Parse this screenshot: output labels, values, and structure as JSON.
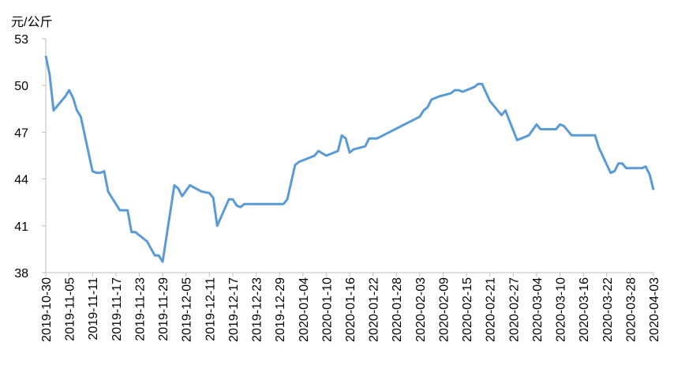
{
  "chart_data": {
    "type": "line",
    "y_label": "元/公斤",
    "xlim": [
      "2019-10-30",
      "2020-04-03"
    ],
    "xticks": [
      "2019-10-30",
      "2019-11-05",
      "2019-11-11",
      "2019-11-17",
      "2019-11-23",
      "2019-11-29",
      "2019-12-05",
      "2019-12-11",
      "2019-12-17",
      "2019-12-23",
      "2019-12-29",
      "2020-01-04",
      "2020-01-10",
      "2020-01-16",
      "2020-01-22",
      "2020-01-28",
      "2020-02-03",
      "2020-02-09",
      "2020-02-15",
      "2020-02-21",
      "2020-02-27",
      "2020-03-04",
      "2020-03-10",
      "2020-03-16",
      "2020-03-22",
      "2020-03-28",
      "2020-04-03"
    ],
    "ylim": [
      38,
      53
    ],
    "yticks": [
      38,
      41,
      44,
      47,
      50,
      53
    ],
    "x": [
      "2019-10-30",
      "2019-10-31",
      "2019-11-01",
      "2019-11-04",
      "2019-11-05",
      "2019-11-06",
      "2019-11-07",
      "2019-11-08",
      "2019-11-11",
      "2019-11-12",
      "2019-11-13",
      "2019-11-14",
      "2019-11-15",
      "2019-11-16",
      "2019-11-18",
      "2019-11-20",
      "2019-11-21",
      "2019-11-22",
      "2019-11-25",
      "2019-11-27",
      "2019-11-28",
      "2019-11-29",
      "2019-12-02",
      "2019-12-03",
      "2019-12-04",
      "2019-12-06",
      "2019-12-09",
      "2019-12-11",
      "2019-12-12",
      "2019-12-13",
      "2019-12-16",
      "2019-12-17",
      "2019-12-18",
      "2019-12-19",
      "2019-12-20",
      "2019-12-30",
      "2019-12-31",
      "2020-01-02",
      "2020-01-03",
      "2020-01-06",
      "2020-01-07",
      "2020-01-08",
      "2020-01-10",
      "2020-01-13",
      "2020-01-14",
      "2020-01-15",
      "2020-01-16",
      "2020-01-17",
      "2020-01-20",
      "2020-01-21",
      "2020-01-23",
      "2020-02-03",
      "2020-02-04",
      "2020-02-05",
      "2020-02-06",
      "2020-02-08",
      "2020-02-11",
      "2020-02-12",
      "2020-02-13",
      "2020-02-14",
      "2020-02-17",
      "2020-02-18",
      "2020-02-19",
      "2020-02-21",
      "2020-02-24",
      "2020-02-25",
      "2020-02-28",
      "2020-03-02",
      "2020-03-04",
      "2020-03-05",
      "2020-03-09",
      "2020-03-10",
      "2020-03-11",
      "2020-03-13",
      "2020-03-16",
      "2020-03-18",
      "2020-03-19",
      "2020-03-20",
      "2020-03-23",
      "2020-03-24",
      "2020-03-25",
      "2020-03-26",
      "2020-03-27",
      "2020-03-31",
      "2020-04-01",
      "2020-04-02",
      "2020-04-03"
    ],
    "series": [
      {
        "color": "#5b9bd5",
        "values": [
          51.9,
          50.7,
          48.4,
          49.3,
          49.7,
          49.2,
          48.4,
          48.0,
          44.5,
          44.4,
          44.4,
          44.5,
          43.2,
          42.8,
          42.0,
          42.0,
          40.6,
          40.6,
          40.0,
          39.1,
          39.1,
          38.7,
          43.6,
          43.4,
          42.9,
          43.6,
          43.2,
          43.1,
          42.8,
          41.0,
          42.7,
          42.7,
          42.3,
          42.2,
          42.4,
          42.4,
          42.7,
          44.9,
          45.1,
          45.4,
          45.5,
          45.8,
          45.5,
          45.8,
          46.8,
          46.6,
          45.7,
          45.9,
          46.1,
          46.6,
          46.6,
          48.0,
          48.4,
          48.6,
          49.1,
          49.3,
          49.5,
          49.7,
          49.7,
          49.6,
          49.9,
          50.1,
          50.1,
          49.0,
          48.1,
          48.4,
          46.5,
          46.8,
          47.5,
          47.2,
          47.2,
          47.5,
          47.4,
          46.8,
          46.8,
          46.8,
          46.8,
          46.0,
          44.4,
          44.5,
          45.0,
          45.0,
          44.7,
          44.7,
          44.8,
          44.3,
          43.3
        ]
      }
    ]
  }
}
